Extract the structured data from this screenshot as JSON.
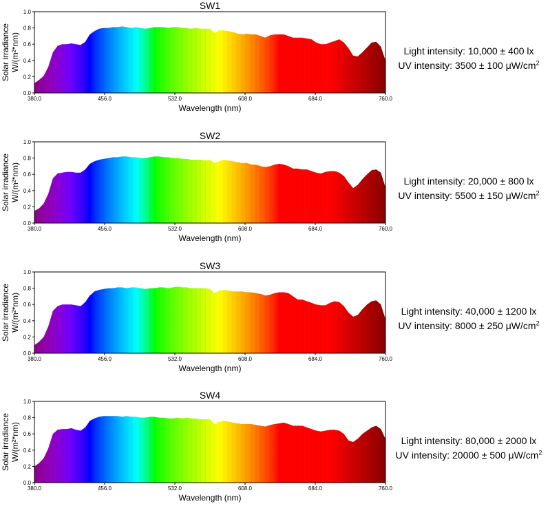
{
  "chart_data": [
    {
      "type": "area",
      "title": "SW1",
      "xlabel": "Wavelength (nm)",
      "ylabel_line1": "Solar irradiance",
      "ylabel_line2": "W/(m²*nm)",
      "xlim": [
        380,
        760
      ],
      "ylim": [
        0,
        1.0
      ],
      "xticks": [
        "380.0",
        "456.0",
        "532.0",
        "608.0",
        "684.0",
        "760.0"
      ],
      "yticks": [
        "0.0",
        "0.2",
        "0.4",
        "0.6",
        "0.8",
        "1.0"
      ],
      "light_intensity": "Light intensity: 10,000 ± 400 lx",
      "uv_intensity_text": "UV intensity: 3500 ± 100 μW/cm",
      "uv_unit_exp": "2",
      "x": [
        380,
        385,
        390,
        395,
        400,
        405,
        410,
        415,
        420,
        425,
        430,
        435,
        440,
        445,
        450,
        455,
        460,
        465,
        470,
        475,
        480,
        485,
        490,
        495,
        500,
        505,
        510,
        515,
        520,
        525,
        530,
        535,
        540,
        545,
        550,
        555,
        560,
        565,
        570,
        575,
        580,
        585,
        590,
        595,
        600,
        605,
        610,
        615,
        620,
        625,
        630,
        635,
        640,
        645,
        650,
        655,
        660,
        665,
        670,
        675,
        680,
        685,
        690,
        695,
        700,
        705,
        710,
        715,
        720,
        725,
        730,
        735,
        740,
        745,
        750,
        755,
        760
      ],
      "values": [
        0.12,
        0.16,
        0.21,
        0.32,
        0.5,
        0.58,
        0.6,
        0.6,
        0.61,
        0.6,
        0.59,
        0.63,
        0.72,
        0.76,
        0.79,
        0.8,
        0.8,
        0.81,
        0.81,
        0.82,
        0.81,
        0.8,
        0.81,
        0.8,
        0.79,
        0.8,
        0.81,
        0.81,
        0.81,
        0.8,
        0.81,
        0.81,
        0.8,
        0.8,
        0.79,
        0.8,
        0.79,
        0.79,
        0.79,
        0.74,
        0.77,
        0.77,
        0.76,
        0.75,
        0.73,
        0.72,
        0.73,
        0.72,
        0.72,
        0.7,
        0.68,
        0.71,
        0.72,
        0.72,
        0.72,
        0.7,
        0.68,
        0.68,
        0.68,
        0.67,
        0.66,
        0.62,
        0.6,
        0.6,
        0.62,
        0.64,
        0.66,
        0.62,
        0.55,
        0.46,
        0.45,
        0.5,
        0.56,
        0.62,
        0.63,
        0.57,
        0.4
      ]
    },
    {
      "type": "area",
      "title": "SW2",
      "xlabel": "Wavelength (nm)",
      "ylabel_line1": "Solar irradiance",
      "ylabel_line2": "W/(m²*nm)",
      "xlim": [
        380,
        760
      ],
      "ylim": [
        0,
        1.0
      ],
      "xticks": [
        "380.0",
        "456.0",
        "532.0",
        "608.0",
        "684.0",
        "760.0"
      ],
      "yticks": [
        "0.0",
        "0.2",
        "0.4",
        "0.6",
        "0.8",
        "1.0"
      ],
      "light_intensity": "Light intensity: 20,000 ± 800 lx",
      "uv_intensity_text": "UV intensity: 5500 ± 150 μW/cm",
      "uv_unit_exp": "2",
      "x": [
        380,
        385,
        390,
        395,
        400,
        405,
        410,
        415,
        420,
        425,
        430,
        435,
        440,
        445,
        450,
        455,
        460,
        465,
        470,
        475,
        480,
        485,
        490,
        495,
        500,
        505,
        510,
        515,
        520,
        525,
        530,
        535,
        540,
        545,
        550,
        555,
        560,
        565,
        570,
        575,
        580,
        585,
        590,
        595,
        600,
        605,
        610,
        615,
        620,
        625,
        630,
        635,
        640,
        645,
        650,
        655,
        660,
        665,
        670,
        675,
        680,
        685,
        690,
        695,
        700,
        705,
        710,
        715,
        720,
        725,
        730,
        735,
        740,
        745,
        750,
        755,
        760
      ],
      "values": [
        0.15,
        0.18,
        0.24,
        0.36,
        0.55,
        0.61,
        0.62,
        0.63,
        0.63,
        0.62,
        0.62,
        0.66,
        0.73,
        0.76,
        0.78,
        0.79,
        0.8,
        0.81,
        0.81,
        0.82,
        0.82,
        0.81,
        0.81,
        0.8,
        0.8,
        0.81,
        0.82,
        0.82,
        0.81,
        0.81,
        0.8,
        0.8,
        0.79,
        0.79,
        0.78,
        0.78,
        0.78,
        0.77,
        0.78,
        0.74,
        0.76,
        0.78,
        0.77,
        0.76,
        0.75,
        0.74,
        0.74,
        0.72,
        0.72,
        0.7,
        0.69,
        0.7,
        0.72,
        0.73,
        0.72,
        0.7,
        0.67,
        0.67,
        0.66,
        0.66,
        0.64,
        0.62,
        0.61,
        0.63,
        0.64,
        0.64,
        0.62,
        0.58,
        0.5,
        0.43,
        0.47,
        0.54,
        0.6,
        0.65,
        0.66,
        0.62,
        0.44
      ]
    },
    {
      "type": "area",
      "title": "SW3",
      "xlabel": "Wavelength (nm)",
      "ylabel_line1": "Solar irradiance",
      "ylabel_line2": "W/(m²*nm)",
      "xlim": [
        380,
        760
      ],
      "ylim": [
        0,
        1.0
      ],
      "xticks": [
        "380.0",
        "456.0",
        "532.0",
        "608.0",
        "684.0",
        "760.0"
      ],
      "yticks": [
        "0.0",
        "0.2",
        "0.4",
        "0.6",
        "0.8",
        "1.0"
      ],
      "light_intensity": "Light intensity: 40,000 ± 1200 lx",
      "uv_intensity_text": "UV intensity: 8000 ± 250 μW/cm",
      "uv_unit_exp": "2",
      "x": [
        380,
        385,
        390,
        395,
        400,
        405,
        410,
        415,
        420,
        425,
        430,
        435,
        440,
        445,
        450,
        455,
        460,
        465,
        470,
        475,
        480,
        485,
        490,
        495,
        500,
        505,
        510,
        515,
        520,
        525,
        530,
        535,
        540,
        545,
        550,
        555,
        560,
        565,
        570,
        575,
        580,
        585,
        590,
        595,
        600,
        605,
        610,
        615,
        620,
        625,
        630,
        635,
        640,
        645,
        650,
        655,
        660,
        665,
        670,
        675,
        680,
        685,
        690,
        695,
        700,
        705,
        710,
        715,
        720,
        725,
        730,
        735,
        740,
        745,
        750,
        755,
        760
      ],
      "values": [
        0.1,
        0.14,
        0.2,
        0.33,
        0.52,
        0.58,
        0.6,
        0.6,
        0.6,
        0.59,
        0.58,
        0.63,
        0.71,
        0.76,
        0.78,
        0.79,
        0.8,
        0.8,
        0.81,
        0.81,
        0.8,
        0.81,
        0.81,
        0.8,
        0.79,
        0.8,
        0.8,
        0.81,
        0.81,
        0.8,
        0.81,
        0.82,
        0.81,
        0.81,
        0.8,
        0.8,
        0.8,
        0.8,
        0.79,
        0.74,
        0.77,
        0.78,
        0.77,
        0.76,
        0.76,
        0.76,
        0.75,
        0.75,
        0.74,
        0.73,
        0.71,
        0.72,
        0.74,
        0.75,
        0.75,
        0.74,
        0.7,
        0.66,
        0.66,
        0.64,
        0.62,
        0.6,
        0.59,
        0.59,
        0.62,
        0.64,
        0.63,
        0.58,
        0.5,
        0.45,
        0.47,
        0.54,
        0.6,
        0.64,
        0.65,
        0.6,
        0.42
      ]
    },
    {
      "type": "area",
      "title": "SW4",
      "xlabel": "Wavelength (nm)",
      "ylabel_line1": "Solar irradiance",
      "ylabel_line2": "W/(m²*nm)",
      "xlim": [
        380,
        760
      ],
      "ylim": [
        0,
        1.0
      ],
      "xticks": [
        "380.0",
        "456.0",
        "532.0",
        "608.0",
        "684.0",
        "760.0"
      ],
      "yticks": [
        "0.0",
        "0.2",
        "0.4",
        "0.6",
        "0.8",
        "1.0"
      ],
      "light_intensity": "Light intensity: 80,000 ± 2000 lx",
      "uv_intensity_text": "UV intensity: 20000 ± 500 μW/cm",
      "uv_unit_exp": "2",
      "x": [
        380,
        385,
        390,
        395,
        400,
        405,
        410,
        415,
        420,
        425,
        430,
        435,
        440,
        445,
        450,
        455,
        460,
        465,
        470,
        475,
        480,
        485,
        490,
        495,
        500,
        505,
        510,
        515,
        520,
        525,
        530,
        535,
        540,
        545,
        550,
        555,
        560,
        565,
        570,
        575,
        580,
        585,
        590,
        595,
        600,
        605,
        610,
        615,
        620,
        625,
        630,
        635,
        640,
        645,
        650,
        655,
        660,
        665,
        670,
        675,
        680,
        685,
        690,
        695,
        700,
        705,
        710,
        715,
        720,
        725,
        730,
        735,
        740,
        745,
        750,
        755,
        760
      ],
      "values": [
        0.2,
        0.24,
        0.3,
        0.42,
        0.6,
        0.65,
        0.66,
        0.66,
        0.67,
        0.65,
        0.64,
        0.68,
        0.76,
        0.79,
        0.81,
        0.82,
        0.82,
        0.82,
        0.82,
        0.81,
        0.82,
        0.81,
        0.81,
        0.8,
        0.8,
        0.81,
        0.81,
        0.8,
        0.8,
        0.79,
        0.79,
        0.8,
        0.79,
        0.8,
        0.79,
        0.79,
        0.78,
        0.78,
        0.78,
        0.72,
        0.75,
        0.76,
        0.75,
        0.74,
        0.73,
        0.72,
        0.72,
        0.72,
        0.71,
        0.7,
        0.69,
        0.71,
        0.72,
        0.73,
        0.74,
        0.72,
        0.7,
        0.7,
        0.7,
        0.68,
        0.66,
        0.64,
        0.63,
        0.64,
        0.65,
        0.65,
        0.64,
        0.6,
        0.52,
        0.5,
        0.54,
        0.6,
        0.64,
        0.68,
        0.7,
        0.66,
        0.54
      ]
    }
  ]
}
